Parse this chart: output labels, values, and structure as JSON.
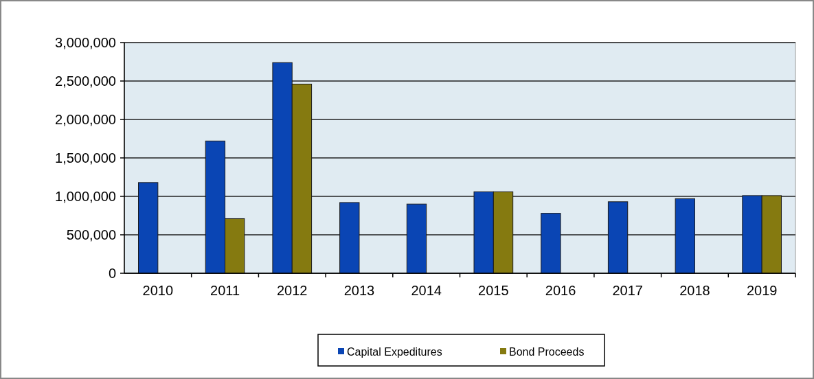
{
  "chart_data": {
    "type": "bar",
    "categories": [
      "2010",
      "2011",
      "2012",
      "2013",
      "2014",
      "2015",
      "2016",
      "2017",
      "2018",
      "2019"
    ],
    "series": [
      {
        "name": "Capital Expeditures",
        "color": "#0a45b4",
        "values": [
          1180000,
          1720000,
          2740000,
          920000,
          900000,
          1060000,
          780000,
          930000,
          970000,
          1010000
        ]
      },
      {
        "name": "Bond Proceeds",
        "color": "#857a10",
        "values": [
          null,
          710000,
          2460000,
          null,
          null,
          1060000,
          null,
          null,
          null,
          1010000
        ]
      }
    ],
    "ylim": [
      0,
      3000000
    ],
    "yticks": [
      {
        "value": 0,
        "label": "0"
      },
      {
        "value": 500000,
        "label": "500,000"
      },
      {
        "value": 1000000,
        "label": "1,000,000"
      },
      {
        "value": 1500000,
        "label": "1,500,000"
      },
      {
        "value": 2000000,
        "label": "2,000,000"
      },
      {
        "value": 2500000,
        "label": "2,500,000"
      },
      {
        "value": 3000000,
        "label": "3,000,000"
      }
    ],
    "grid": "y",
    "legend": "bottom"
  }
}
